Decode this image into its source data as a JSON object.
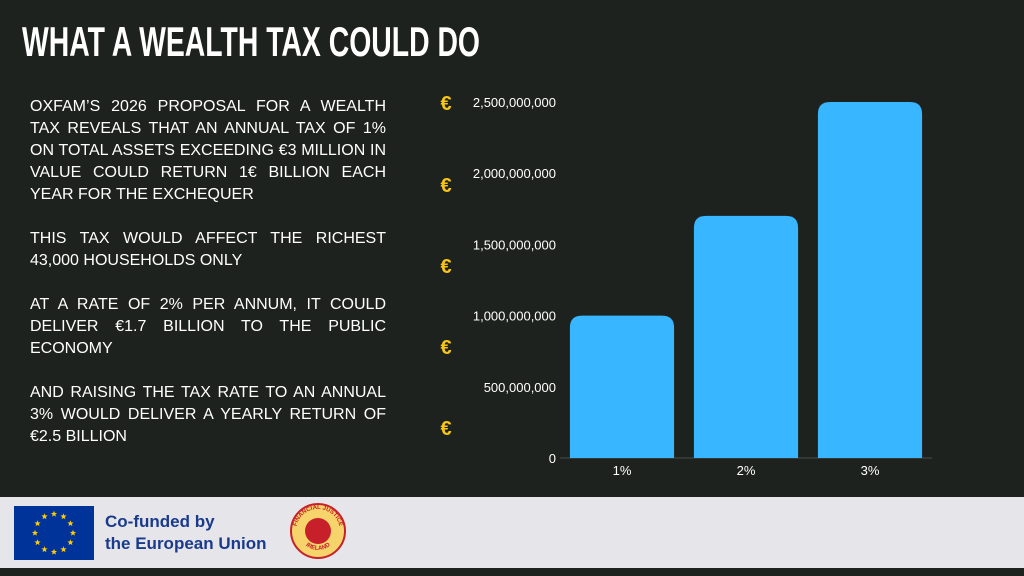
{
  "title": "WHAT A WEALTH TAX COULD DO",
  "paragraphs": [
    "OXFAM’S 2026 PROPOSAL FOR A WEALTH TAX REVEALS THAT AN ANNUAL TAX OF 1% ON TOTAL ASSETS EXCEEDING €3 MILLION IN VALUE COULD RETURN 1€ BILLION EACH YEAR FOR THE EXCHEQUER",
    "THIS TAX WOULD AFFECT THE RICHEST 43,000 HOUSEHOLDS ONLY",
    "AT A RATE OF 2% PER ANNUM, IT COULD DELIVER €1.7 BILLION TO THE PUBLIC ECONOMY",
    "AND RAISING THE TAX RATE TO AN ANNUAL 3% WOULD DELIVER A YEARLY RETURN OF €2.5 BILLION"
  ],
  "euro_symbol": "€",
  "chart_data": {
    "type": "bar",
    "categories": [
      "1%",
      "2%",
      "3%"
    ],
    "values": [
      1000000000,
      1700000000,
      2500000000
    ],
    "color": "#38b6ff",
    "ylim": [
      0,
      2500000000
    ],
    "yticks": [
      0,
      {
        "value": 500000000,
        "label": "500,000,000"
      },
      {
        "value": 1000000000,
        "label": "1,000,000,000"
      },
      {
        "value": 1500000000,
        "label": "1,500,000,000"
      },
      {
        "value": 2000000000,
        "label": "2,000,000,000"
      },
      {
        "value": 2500000000,
        "label": "2,500,000,000"
      }
    ]
  },
  "footer": {
    "funding_line1": "Co-funded by",
    "funding_line2": "the European Union",
    "logo_top": "FINANCIAL JUSTICE",
    "logo_bottom": "IRELAND"
  }
}
